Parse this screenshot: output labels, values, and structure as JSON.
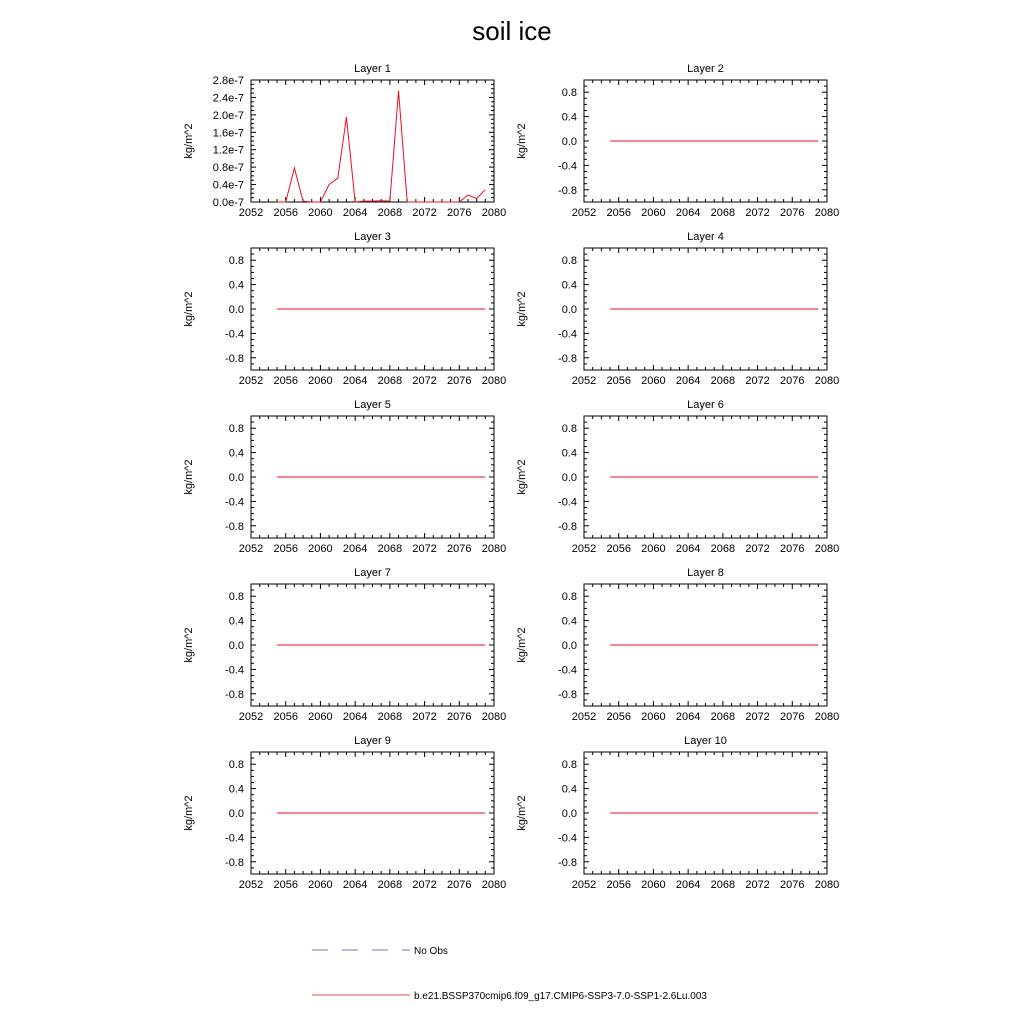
{
  "title": "soil ice",
  "colors": {
    "model": "#e8101e",
    "obs": "#3a4fd0",
    "axis": "#000000"
  },
  "legend": {
    "obs_label": "No Obs",
    "model_label": "b.e21.BSSP370cmip6.f09_g17.CMIP6-SSP3-7.0-SSP1-2.6Lu.003"
  },
  "chart_data": [
    {
      "type": "line",
      "title": "Layer 1",
      "ylabel": "kg/m^2",
      "xlim": [
        2052,
        2080
      ],
      "ylim": [
        0,
        2.8e-07
      ],
      "xticks": [
        2052,
        2056,
        2060,
        2064,
        2068,
        2072,
        2076,
        2080
      ],
      "xtick_labels": [
        "2052",
        "2056",
        "2060",
        "2064",
        "2068",
        "2072",
        "2076",
        "2080"
      ],
      "yticks": [
        0,
        4e-08,
        8e-08,
        1.2e-07,
        1.6e-07,
        2e-07,
        2.4e-07,
        2.8e-07
      ],
      "ytick_labels": [
        "0.0e-7",
        "0.4e-7",
        "0.8e-7",
        "1.2e-7",
        "1.6e-7",
        "2.0e-7",
        "2.4e-7",
        "2.8e-7"
      ],
      "grid": false,
      "series": [
        {
          "name": "b.e21.BSSP370cmip6.f09_g17.CMIP6-SSP3-7.0-SSP1-2.6Lu.003",
          "x": [
            2055,
            2056,
            2057,
            2058,
            2059,
            2060,
            2061,
            2062,
            2063,
            2064,
            2065,
            2066,
            2067,
            2068,
            2069,
            2070,
            2071,
            2072,
            2073,
            2074,
            2075,
            2076,
            2077,
            2078,
            2079
          ],
          "y": [
            0,
            0,
            7.8e-08,
            2e-09,
            0,
            0,
            4e-08,
            5.5e-08,
            1.95e-07,
            0,
            2e-09,
            2e-09,
            3e-09,
            2e-09,
            2.55e-07,
            0,
            0,
            0,
            0,
            0,
            0,
            0,
            1.6e-08,
            8e-09,
            2.8e-08
          ]
        }
      ]
    },
    {
      "type": "line",
      "title": "Layer 2",
      "ylabel": "kg/m^2",
      "xlim": [
        2052,
        2080
      ],
      "ylim": [
        -1,
        1
      ],
      "xticks": [
        2052,
        2056,
        2060,
        2064,
        2068,
        2072,
        2076,
        2080
      ],
      "xtick_labels": [
        "2052",
        "2056",
        "2060",
        "2064",
        "2068",
        "2072",
        "2076",
        "2080"
      ],
      "yticks": [
        -0.8,
        -0.4,
        0,
        0.4,
        0.8
      ],
      "ytick_labels": [
        "-0.8",
        "-0.4",
        "0.0",
        "0.4",
        "0.8"
      ],
      "grid": false,
      "series": [
        {
          "name": "b.e21.BSSP370cmip6.f09_g17.CMIP6-SSP3-7.0-SSP1-2.6Lu.003",
          "x": [
            2055,
            2079
          ],
          "y": [
            0,
            0
          ]
        }
      ]
    },
    {
      "type": "line",
      "title": "Layer 3",
      "ylabel": "kg/m^2",
      "xlim": [
        2052,
        2080
      ],
      "ylim": [
        -1,
        1
      ],
      "xticks": [
        2052,
        2056,
        2060,
        2064,
        2068,
        2072,
        2076,
        2080
      ],
      "xtick_labels": [
        "2052",
        "2056",
        "2060",
        "2064",
        "2068",
        "2072",
        "2076",
        "2080"
      ],
      "yticks": [
        -0.8,
        -0.4,
        0,
        0.4,
        0.8
      ],
      "ytick_labels": [
        "-0.8",
        "-0.4",
        "0.0",
        "0.4",
        "0.8"
      ],
      "grid": false,
      "series": [
        {
          "name": "b.e21.BSSP370cmip6.f09_g17.CMIP6-SSP3-7.0-SSP1-2.6Lu.003",
          "x": [
            2055,
            2079
          ],
          "y": [
            0,
            0
          ]
        }
      ]
    },
    {
      "type": "line",
      "title": "Layer 4",
      "ylabel": "kg/m^2",
      "xlim": [
        2052,
        2080
      ],
      "ylim": [
        -1,
        1
      ],
      "xticks": [
        2052,
        2056,
        2060,
        2064,
        2068,
        2072,
        2076,
        2080
      ],
      "xtick_labels": [
        "2052",
        "2056",
        "2060",
        "2064",
        "2068",
        "2072",
        "2076",
        "2080"
      ],
      "yticks": [
        -0.8,
        -0.4,
        0,
        0.4,
        0.8
      ],
      "ytick_labels": [
        "-0.8",
        "-0.4",
        "0.0",
        "0.4",
        "0.8"
      ],
      "grid": false,
      "series": [
        {
          "name": "b.e21.BSSP370cmip6.f09_g17.CMIP6-SSP3-7.0-SSP1-2.6Lu.003",
          "x": [
            2055,
            2079
          ],
          "y": [
            0,
            0
          ]
        }
      ]
    },
    {
      "type": "line",
      "title": "Layer 5",
      "ylabel": "kg/m^2",
      "xlim": [
        2052,
        2080
      ],
      "ylim": [
        -1,
        1
      ],
      "xticks": [
        2052,
        2056,
        2060,
        2064,
        2068,
        2072,
        2076,
        2080
      ],
      "xtick_labels": [
        "2052",
        "2056",
        "2060",
        "2064",
        "2068",
        "2072",
        "2076",
        "2080"
      ],
      "yticks": [
        -0.8,
        -0.4,
        0,
        0.4,
        0.8
      ],
      "ytick_labels": [
        "-0.8",
        "-0.4",
        "0.0",
        "0.4",
        "0.8"
      ],
      "grid": false,
      "series": [
        {
          "name": "b.e21.BSSP370cmip6.f09_g17.CMIP6-SSP3-7.0-SSP1-2.6Lu.003",
          "x": [
            2055,
            2079
          ],
          "y": [
            0,
            0
          ]
        }
      ]
    },
    {
      "type": "line",
      "title": "Layer 6",
      "ylabel": "kg/m^2",
      "xlim": [
        2052,
        2080
      ],
      "ylim": [
        -1,
        1
      ],
      "xticks": [
        2052,
        2056,
        2060,
        2064,
        2068,
        2072,
        2076,
        2080
      ],
      "xtick_labels": [
        "2052",
        "2056",
        "2060",
        "2064",
        "2068",
        "2072",
        "2076",
        "2080"
      ],
      "yticks": [
        -0.8,
        -0.4,
        0,
        0.4,
        0.8
      ],
      "ytick_labels": [
        "-0.8",
        "-0.4",
        "0.0",
        "0.4",
        "0.8"
      ],
      "grid": false,
      "series": [
        {
          "name": "b.e21.BSSP370cmip6.f09_g17.CMIP6-SSP3-7.0-SSP1-2.6Lu.003",
          "x": [
            2055,
            2079
          ],
          "y": [
            0,
            0
          ]
        }
      ]
    },
    {
      "type": "line",
      "title": "Layer 7",
      "ylabel": "kg/m^2",
      "xlim": [
        2052,
        2080
      ],
      "ylim": [
        -1,
        1
      ],
      "xticks": [
        2052,
        2056,
        2060,
        2064,
        2068,
        2072,
        2076,
        2080
      ],
      "xtick_labels": [
        "2052",
        "2056",
        "2060",
        "2064",
        "2068",
        "2072",
        "2076",
        "2080"
      ],
      "yticks": [
        -0.8,
        -0.4,
        0,
        0.4,
        0.8
      ],
      "ytick_labels": [
        "-0.8",
        "-0.4",
        "0.0",
        "0.4",
        "0.8"
      ],
      "grid": false,
      "series": [
        {
          "name": "b.e21.BSSP370cmip6.f09_g17.CMIP6-SSP3-7.0-SSP1-2.6Lu.003",
          "x": [
            2055,
            2079
          ],
          "y": [
            0,
            0
          ]
        }
      ]
    },
    {
      "type": "line",
      "title": "Layer 8",
      "ylabel": "kg/m^2",
      "xlim": [
        2052,
        2080
      ],
      "ylim": [
        -1,
        1
      ],
      "xticks": [
        2052,
        2056,
        2060,
        2064,
        2068,
        2072,
        2076,
        2080
      ],
      "xtick_labels": [
        "2052",
        "2056",
        "2060",
        "2064",
        "2068",
        "2072",
        "2076",
        "2080"
      ],
      "yticks": [
        -0.8,
        -0.4,
        0,
        0.4,
        0.8
      ],
      "ytick_labels": [
        "-0.8",
        "-0.4",
        "0.0",
        "0.4",
        "0.8"
      ],
      "grid": false,
      "series": [
        {
          "name": "b.e21.BSSP370cmip6.f09_g17.CMIP6-SSP3-7.0-SSP1-2.6Lu.003",
          "x": [
            2055,
            2079
          ],
          "y": [
            0,
            0
          ]
        }
      ]
    },
    {
      "type": "line",
      "title": "Layer 9",
      "ylabel": "kg/m^2",
      "xlim": [
        2052,
        2080
      ],
      "ylim": [
        -1,
        1
      ],
      "xticks": [
        2052,
        2056,
        2060,
        2064,
        2068,
        2072,
        2076,
        2080
      ],
      "xtick_labels": [
        "2052",
        "2056",
        "2060",
        "2064",
        "2068",
        "2072",
        "2076",
        "2080"
      ],
      "yticks": [
        -0.8,
        -0.4,
        0,
        0.4,
        0.8
      ],
      "ytick_labels": [
        "-0.8",
        "-0.4",
        "0.0",
        "0.4",
        "0.8"
      ],
      "grid": false,
      "series": [
        {
          "name": "b.e21.BSSP370cmip6.f09_g17.CMIP6-SSP3-7.0-SSP1-2.6Lu.003",
          "x": [
            2055,
            2079
          ],
          "y": [
            0,
            0
          ]
        }
      ]
    },
    {
      "type": "line",
      "title": "Layer 10",
      "ylabel": "kg/m^2",
      "xlim": [
        2052,
        2080
      ],
      "ylim": [
        -1,
        1
      ],
      "xticks": [
        2052,
        2056,
        2060,
        2064,
        2068,
        2072,
        2076,
        2080
      ],
      "xtick_labels": [
        "2052",
        "2056",
        "2060",
        "2064",
        "2068",
        "2072",
        "2076",
        "2080"
      ],
      "yticks": [
        -0.8,
        -0.4,
        0,
        0.4,
        0.8
      ],
      "ytick_labels": [
        "-0.8",
        "-0.4",
        "0.0",
        "0.4",
        "0.8"
      ],
      "grid": false,
      "series": [
        {
          "name": "b.e21.BSSP370cmip6.f09_g17.CMIP6-SSP3-7.0-SSP1-2.6Lu.003",
          "x": [
            2055,
            2079
          ],
          "y": [
            0,
            0
          ]
        }
      ]
    }
  ]
}
